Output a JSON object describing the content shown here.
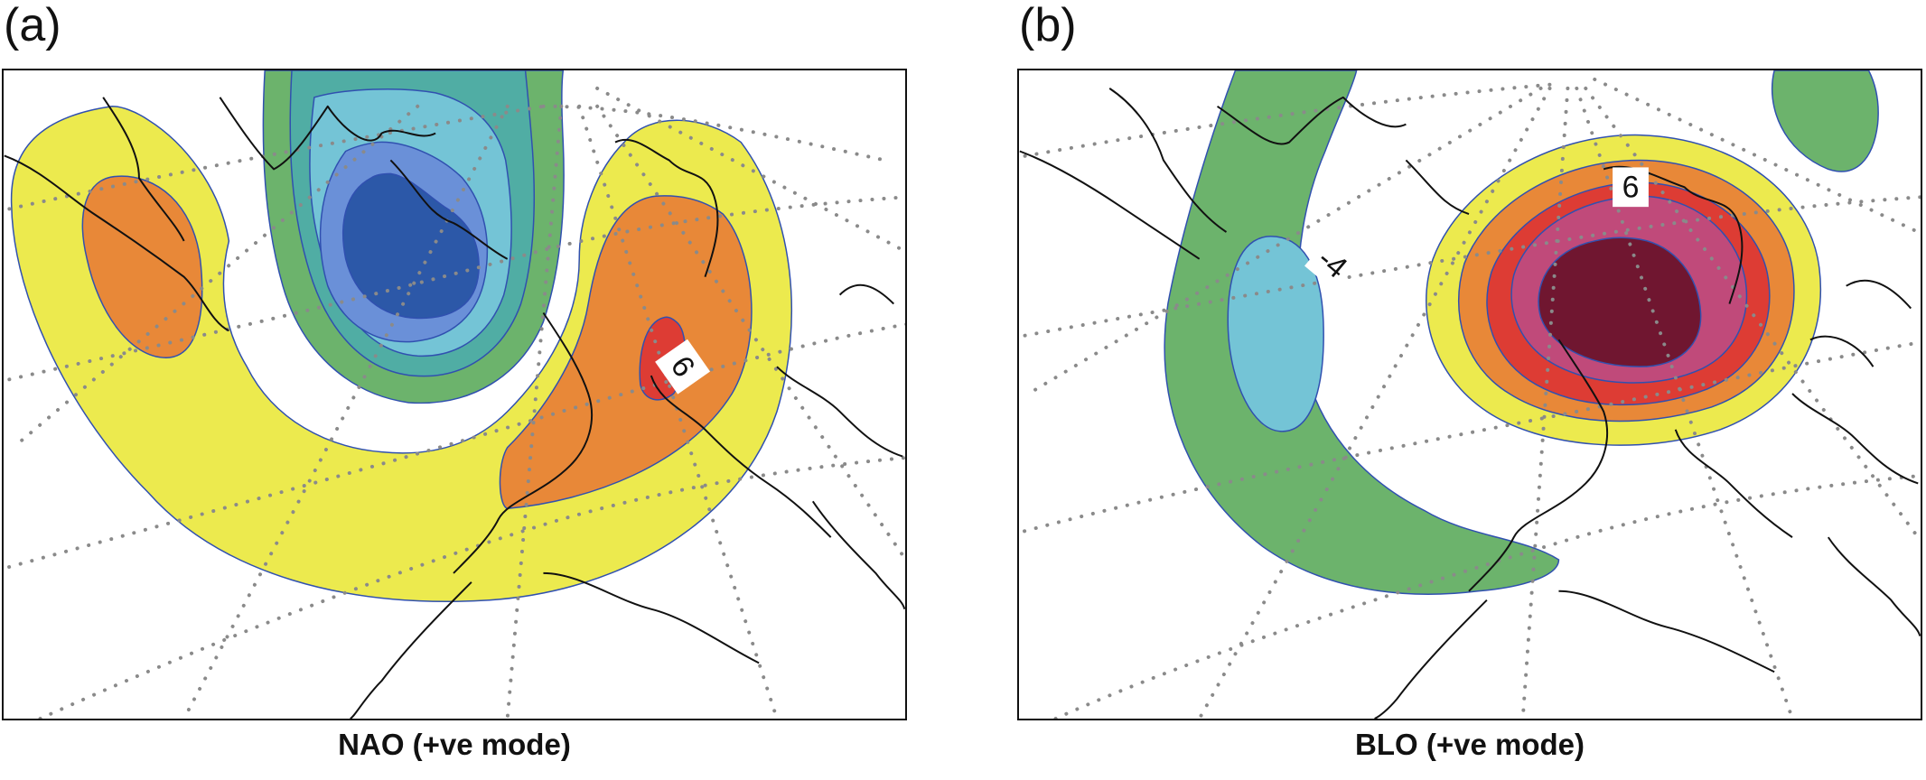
{
  "panels": [
    {
      "letter": "(a)",
      "caption": "NAO (+ve mode)",
      "contour_label": "6"
    },
    {
      "letter": "(b)",
      "caption": "BLO (+ve mode)",
      "contour_labels": [
        "-4",
        "6"
      ]
    }
  ],
  "colors": {
    "yellow": "#ecea4e",
    "orange": "#e88838",
    "red": "#dd3c34",
    "magenta": "#c04a7a",
    "maroon": "#701630",
    "green": "#6cb36c",
    "teal": "#50ada4",
    "cyan": "#74c4d6",
    "blue_light": "#6a90d8",
    "blue_dark": "#2c58a8"
  }
}
